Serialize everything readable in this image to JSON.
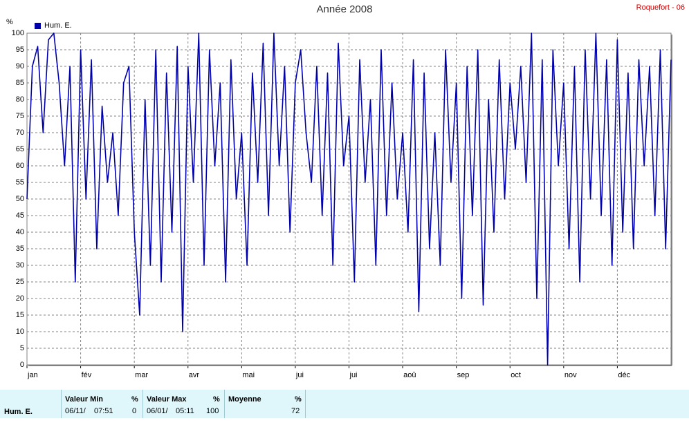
{
  "title": "Année 2008",
  "station": "Roquefort - 06",
  "legend": "Hum. E.",
  "ylabel": "%",
  "colors": {
    "line": "#0000aa",
    "grid": "#808080",
    "stats_bg": "#dff6fb"
  },
  "chart_data": {
    "type": "line",
    "title": "Année 2008",
    "ylabel": "%",
    "ylim": [
      0,
      100
    ],
    "yticks": [
      0,
      5,
      10,
      15,
      20,
      25,
      30,
      35,
      40,
      45,
      50,
      55,
      60,
      65,
      70,
      75,
      80,
      85,
      90,
      95,
      100
    ],
    "xlim": [
      0,
      12
    ],
    "xticks": [
      "jan",
      "fév",
      "mar",
      "avr",
      "mai",
      "jui",
      "jui",
      "aoû",
      "sep",
      "oct",
      "nov",
      "déc"
    ],
    "grid": true,
    "legend_position": "top-left",
    "series": [
      {
        "name": "Hum. E.",
        "x": [
          0.0,
          0.1,
          0.2,
          0.3,
          0.4,
          0.5,
          0.6,
          0.7,
          0.8,
          0.9,
          1.0,
          1.1,
          1.2,
          1.3,
          1.4,
          1.5,
          1.6,
          1.7,
          1.8,
          1.9,
          2.0,
          2.1,
          2.2,
          2.3,
          2.4,
          2.5,
          2.6,
          2.7,
          2.8,
          2.9,
          3.0,
          3.1,
          3.2,
          3.3,
          3.4,
          3.5,
          3.6,
          3.7,
          3.8,
          3.9,
          4.0,
          4.1,
          4.2,
          4.3,
          4.4,
          4.5,
          4.6,
          4.7,
          4.8,
          4.9,
          5.0,
          5.1,
          5.2,
          5.3,
          5.4,
          5.5,
          5.6,
          5.7,
          5.8,
          5.9,
          6.0,
          6.1,
          6.2,
          6.3,
          6.4,
          6.5,
          6.6,
          6.7,
          6.8,
          6.9,
          7.0,
          7.1,
          7.2,
          7.3,
          7.4,
          7.5,
          7.6,
          7.7,
          7.8,
          7.9,
          8.0,
          8.1,
          8.2,
          8.3,
          8.4,
          8.5,
          8.6,
          8.7,
          8.8,
          8.9,
          9.0,
          9.1,
          9.2,
          9.3,
          9.4,
          9.5,
          9.6,
          9.7,
          9.8,
          9.9,
          10.0,
          10.1,
          10.2,
          10.3,
          10.4,
          10.5,
          10.6,
          10.7,
          10.8,
          10.9,
          11.0,
          11.1,
          11.2,
          11.3,
          11.4,
          11.5,
          11.6,
          11.7,
          11.8,
          11.9,
          12.0
        ],
        "y": [
          50,
          90,
          96,
          70,
          98,
          100,
          85,
          60,
          90,
          25,
          95,
          50,
          92,
          35,
          78,
          55,
          70,
          45,
          85,
          90,
          40,
          15,
          80,
          30,
          95,
          25,
          88,
          40,
          96,
          10,
          90,
          55,
          100,
          30,
          95,
          60,
          85,
          25,
          92,
          50,
          70,
          30,
          88,
          55,
          97,
          45,
          100,
          60,
          90,
          40,
          85,
          95,
          70,
          55,
          90,
          45,
          88,
          30,
          97,
          60,
          75,
          25,
          92,
          55,
          80,
          30,
          95,
          45,
          85,
          50,
          70,
          40,
          92,
          16,
          88,
          35,
          70,
          30,
          95,
          55,
          85,
          20,
          90,
          45,
          95,
          18,
          80,
          40,
          92,
          50,
          85,
          65,
          90,
          55,
          100,
          20,
          92,
          0,
          95,
          60,
          85,
          35,
          90,
          25,
          95,
          50,
          100,
          45,
          92,
          30,
          98,
          40,
          88,
          35,
          92,
          60,
          90,
          45,
          95,
          35,
          92
        ]
      }
    ]
  },
  "stats": {
    "series_label": "Hum. E.",
    "min_label": "Valeur Min",
    "min_unit": "%",
    "min_date": "06/11/",
    "min_time": "07:51",
    "min_value": "0",
    "max_label": "Valeur Max",
    "max_unit": "%",
    "max_date": "06/01/",
    "max_time": "05:11",
    "max_value": "100",
    "avg_label": "Moyenne",
    "avg_unit": "%",
    "avg_value": "72"
  }
}
